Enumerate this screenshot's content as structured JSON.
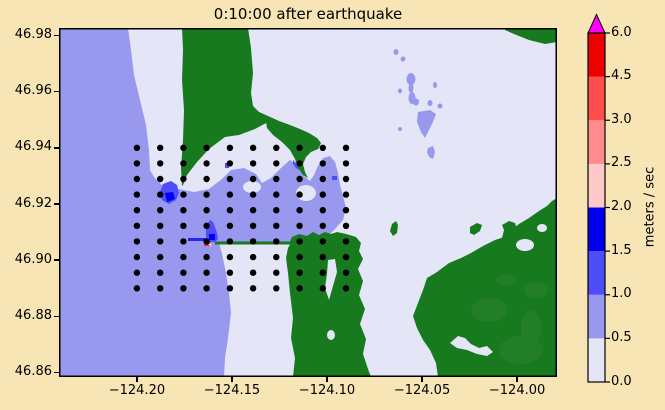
{
  "figure": {
    "title": "0:10:00 after earthquake",
    "background_color": "#F8E5B5"
  },
  "chart_data": {
    "type": "heatmap",
    "subtype": "geographic water-speed map with gauge markers",
    "title": "0:10:00 after earthquake",
    "xlabel": "",
    "ylabel": "",
    "xlim": [
      -124.241,
      -123.979
    ],
    "ylim": [
      46.8584,
      46.98267
    ],
    "grid": false,
    "xticks": [
      -124.2,
      -124.15,
      -124.1,
      -124.05,
      -124.0
    ],
    "xtick_labels": [
      "−124.20",
      "−124.15",
      "−124.10",
      "−124.05",
      "−124.00"
    ],
    "yticks": [
      46.86,
      46.88,
      46.9,
      46.92,
      46.94,
      46.96,
      46.98
    ],
    "ytick_labels": [
      "46.86",
      "46.88",
      "46.90",
      "46.92",
      "46.94",
      "46.96",
      "46.98"
    ],
    "colorbar": {
      "label": "meters / sec",
      "boundaries": [
        0.0,
        0.5,
        1.0,
        1.5,
        2.0,
        2.5,
        3.0,
        4.5,
        6.0
      ],
      "tick_labels": [
        "0.0",
        "0.5",
        "1.0",
        "1.5",
        "2.0",
        "2.5",
        "3.0",
        "4.5",
        "6.0"
      ],
      "segment_colors": [
        "#E5E5F8",
        "#9898EF",
        "#4D4DFA",
        "#0000EE",
        "#FFC8C8",
        "#FF8C8C",
        "#FF4D4D",
        "#EE0000"
      ],
      "over_color": "#FF00FF",
      "position": "right"
    },
    "gauges": {
      "marker": "black dot",
      "grid_shape": [
        10,
        10
      ],
      "lon_min": -124.2,
      "lon_max": -124.09,
      "lat_min": 46.89,
      "lat_max": 46.94
    },
    "colors": {
      "land": "#177A1F",
      "land_light": "#2E8430",
      "water_speed_0_05": "#E5E5F8",
      "water_speed_05_1": "#9898EF",
      "water_speed_1_15": "#4D4DFA",
      "water_speed_15_2": "#0000EE",
      "high_speed_spot": "#E03020",
      "marker": "#000000"
    }
  }
}
